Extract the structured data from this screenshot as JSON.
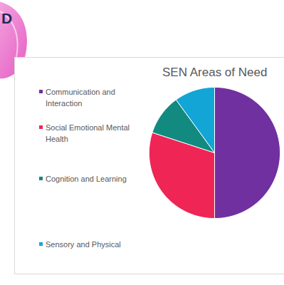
{
  "chart_data": {
    "type": "pie",
    "title": "SEN Areas of Need",
    "annotations": [
      "D"
    ],
    "categories": [
      "Communication and Interaction",
      "Social Emotional Mental Health",
      "Cognition and Learning",
      "Sensory and Physical"
    ],
    "values": [
      50,
      30,
      10,
      10
    ],
    "colors": [
      "#7030a0",
      "#ef2556",
      "#128a80",
      "#13a5d6"
    ],
    "legend": "left"
  }
}
